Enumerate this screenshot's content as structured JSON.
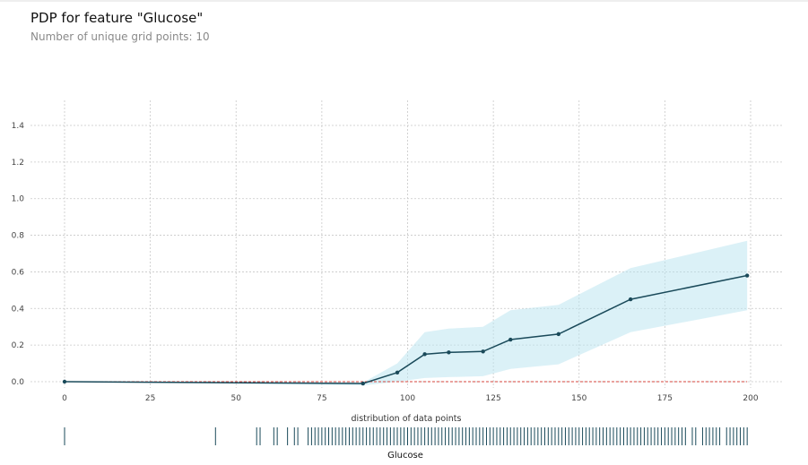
{
  "header": {
    "title": "PDP for feature \"Glucose\"",
    "subtitle": "Number of unique grid points: 10"
  },
  "chart_data": {
    "type": "line",
    "title": "PDP for feature \"Glucose\"",
    "subtitle": "Number of unique grid points: 10",
    "xlabel": "Glucose",
    "ylabel": "",
    "xlim": [
      -3,
      209
    ],
    "ylim": [
      -0.02,
      1.55
    ],
    "x_ticks": [
      0,
      25,
      50,
      75,
      100,
      125,
      150,
      175,
      200
    ],
    "y_ticks": [
      0.0,
      0.2,
      0.4,
      0.6,
      0.8,
      1.0,
      1.2,
      1.4
    ],
    "grid": true,
    "series": [
      {
        "x": [
          0,
          87,
          97,
          105,
          112,
          122,
          130,
          144,
          165,
          199
        ],
        "y": [
          0.0,
          -0.01,
          0.05,
          0.15,
          0.16,
          0.165,
          0.23,
          0.26,
          0.45,
          0.58
        ],
        "lower": [
          0.0,
          -0.02,
          0.0,
          0.02,
          0.025,
          0.03,
          0.07,
          0.095,
          0.27,
          0.39
        ],
        "upper": [
          0.0,
          -0.005,
          0.1,
          0.27,
          0.29,
          0.3,
          0.39,
          0.42,
          0.62,
          0.77
        ],
        "line_color": "#1a4a5a",
        "band_color": "#b8e4ef"
      }
    ],
    "reference_line": {
      "y": 0.0,
      "color": "#d6453d"
    },
    "distribution_label": "distribution of data points",
    "distribution_points": [
      0,
      44,
      56,
      57,
      61,
      62,
      65,
      67,
      68,
      71,
      72,
      73,
      74,
      75,
      76,
      77,
      78,
      79,
      80,
      81,
      82,
      83,
      84,
      85,
      86,
      87,
      88,
      89,
      90,
      91,
      92,
      93,
      94,
      95,
      96,
      97,
      98,
      99,
      100,
      101,
      102,
      103,
      104,
      105,
      106,
      107,
      108,
      109,
      110,
      111,
      112,
      113,
      114,
      115,
      116,
      117,
      118,
      119,
      120,
      121,
      122,
      123,
      124,
      125,
      126,
      127,
      128,
      129,
      130,
      131,
      132,
      133,
      134,
      135,
      136,
      137,
      138,
      139,
      140,
      141,
      142,
      143,
      144,
      145,
      146,
      147,
      148,
      149,
      150,
      151,
      152,
      153,
      154,
      155,
      156,
      157,
      158,
      159,
      160,
      161,
      162,
      163,
      164,
      165,
      166,
      167,
      168,
      169,
      170,
      171,
      172,
      173,
      174,
      175,
      176,
      177,
      178,
      179,
      180,
      181,
      183,
      184,
      186,
      187,
      188,
      189,
      190,
      191,
      193,
      194,
      195,
      196,
      197,
      198,
      199
    ],
    "distribution_color": "#1a4a5a"
  }
}
